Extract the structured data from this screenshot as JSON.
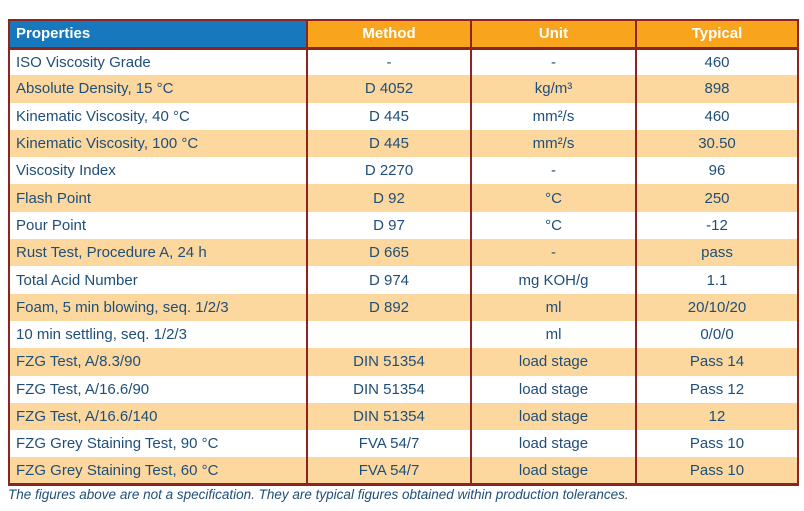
{
  "colors": {
    "header_blue": "#1878be",
    "header_orange": "#f9a41d",
    "row_stripe": "#fcd79e",
    "table_border": "#8c2420",
    "text_navy": "#1f4e79"
  },
  "table": {
    "columns": [
      "Properties",
      "Method",
      "Unit",
      "Typical"
    ],
    "rows": [
      {
        "property": "ISO Viscosity Grade",
        "method": "-",
        "unit": "-",
        "typical": "460"
      },
      {
        "property": "Absolute Density, 15 °C",
        "method": "D 4052",
        "unit": "kg/m³",
        "typical": "898"
      },
      {
        "property": "Kinematic Viscosity, 40 °C",
        "method": "D 445",
        "unit": "mm²/s",
        "typical": "460"
      },
      {
        "property": "Kinematic Viscosity, 100 °C",
        "method": "D 445",
        "unit": "mm²/s",
        "typical": "30.50"
      },
      {
        "property": "Viscosity Index",
        "method": "D 2270",
        "unit": "-",
        "typical": "96"
      },
      {
        "property": "Flash Point",
        "method": "D 92",
        "unit": "°C",
        "typical": "250"
      },
      {
        "property": "Pour Point",
        "method": "D 97",
        "unit": "°C",
        "typical": "-12"
      },
      {
        "property": "Rust Test, Procedure A, 24 h",
        "method": "D 665",
        "unit": "-",
        "typical": "pass"
      },
      {
        "property": "Total Acid Number",
        "method": "D 974",
        "unit": "mg KOH/g",
        "typical": "1.1"
      },
      {
        "property": "Foam, 5 min blowing, seq. 1/2/3",
        "method": "D 892",
        "unit": "ml",
        "typical": "20/10/20"
      },
      {
        "property": "10 min settling, seq. 1/2/3",
        "method": "",
        "unit": "ml",
        "typical": "0/0/0"
      },
      {
        "property": "FZG Test, A/8.3/90",
        "method": "DIN 51354",
        "unit": "load stage",
        "typical": "Pass 14"
      },
      {
        "property": "FZG Test, A/16.6/90",
        "method": "DIN 51354",
        "unit": "load stage",
        "typical": "Pass 12"
      },
      {
        "property": "FZG Test, A/16.6/140",
        "method": "DIN 51354",
        "unit": "load stage",
        "typical": "12"
      },
      {
        "property": "FZG Grey Staining Test, 90 °C",
        "method": "FVA 54/7",
        "unit": "load stage",
        "typical": "Pass 10"
      },
      {
        "property": "FZG Grey Staining Test, 60 °C",
        "method": "FVA 54/7",
        "unit": "load stage",
        "typical": "Pass 10"
      }
    ]
  },
  "footnote": "The figures above are not a specification. They are typical figures obtained within production tolerances."
}
